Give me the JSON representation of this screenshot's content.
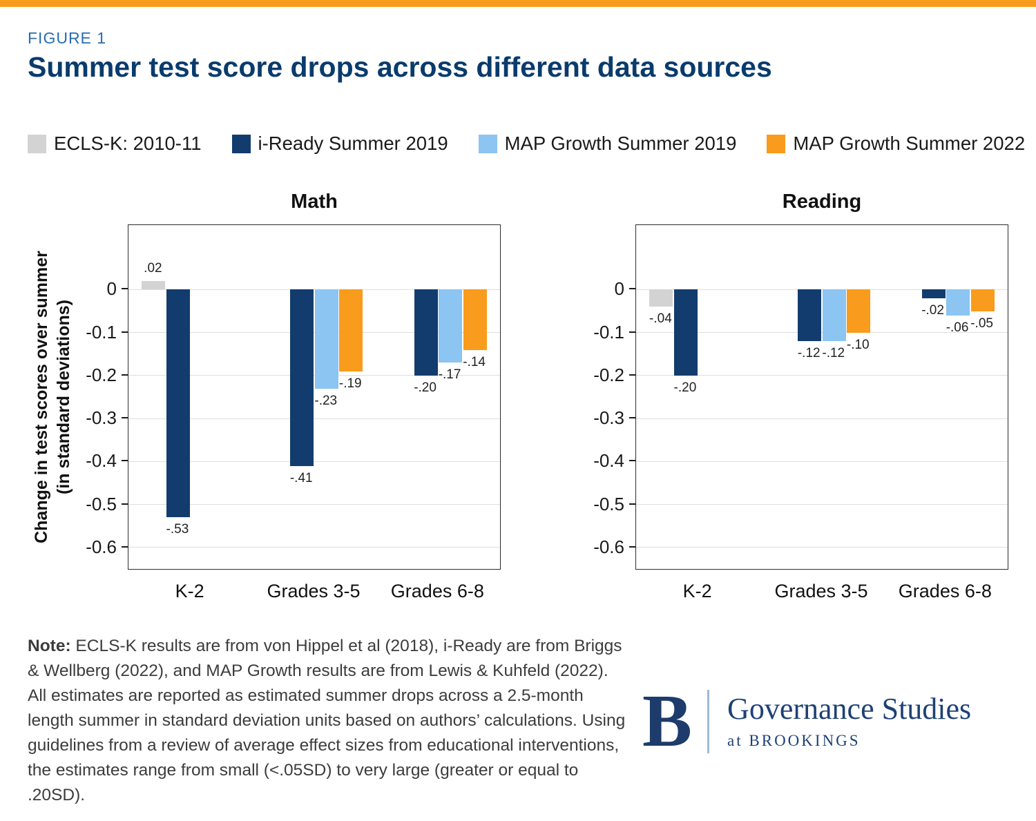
{
  "page": {
    "figure_label": "FIGURE 1",
    "title": "Summer test score drops across different data sources"
  },
  "colors": {
    "accent_bar": "#f99b1c",
    "title_navy": "#093b6d",
    "figure_label_blue": "#2a6db1"
  },
  "legend": [
    {
      "label": "ECLS-K: 2010-11",
      "color": "#d3d3d3"
    },
    {
      "label": "i-Ready Summer 2019",
      "color": "#123c6e"
    },
    {
      "label": "MAP Growth Summer 2019",
      "color": "#8cc4f2"
    },
    {
      "label": "MAP Growth Summer 2022",
      "color": "#f99b1c"
    }
  ],
  "chart_data": [
    {
      "type": "bar",
      "title": "Math",
      "categories": [
        "K-2",
        "Grades 3-5",
        "Grades 6-8"
      ],
      "series": [
        {
          "name": "ECLS-K: 2010-11",
          "color": "#d3d3d3",
          "values": [
            0.02,
            null,
            null
          ],
          "labels": [
            ".02",
            null,
            null
          ]
        },
        {
          "name": "i-Ready Summer 2019",
          "color": "#123c6e",
          "values": [
            -0.53,
            -0.41,
            -0.2
          ],
          "labels": [
            "-.53",
            "-.41",
            "-.20"
          ]
        },
        {
          "name": "MAP Growth Summer 2019",
          "color": "#8cc4f2",
          "values": [
            null,
            -0.23,
            -0.17
          ],
          "labels": [
            null,
            "-.23",
            "-.17"
          ]
        },
        {
          "name": "MAP Growth Summer 2022",
          "color": "#f99b1c",
          "values": [
            null,
            -0.19,
            -0.14
          ],
          "labels": [
            null,
            "-.19",
            "-.14"
          ]
        }
      ],
      "ylabel_line1": "Change in test scores over summer",
      "ylabel_line2": "(in standard deviations)",
      "ylim": [
        -0.65,
        0.15
      ],
      "yticks": [
        {
          "v": 0,
          "label": "0"
        },
        {
          "v": -0.1,
          "label": "-0.1"
        },
        {
          "v": -0.2,
          "label": "-0.2"
        },
        {
          "v": -0.3,
          "label": "-0.3"
        },
        {
          "v": -0.4,
          "label": "-0.4"
        },
        {
          "v": -0.5,
          "label": "-0.5"
        },
        {
          "v": -0.6,
          "label": "-0.6"
        }
      ],
      "grid": true,
      "legend_position": "top"
    },
    {
      "type": "bar",
      "title": "Reading",
      "categories": [
        "K-2",
        "Grades 3-5",
        "Grades 6-8"
      ],
      "series": [
        {
          "name": "ECLS-K: 2010-11",
          "color": "#d3d3d3",
          "values": [
            -0.04,
            null,
            null
          ],
          "labels": [
            "-.04",
            null,
            null
          ]
        },
        {
          "name": "i-Ready Summer 2019",
          "color": "#123c6e",
          "values": [
            -0.2,
            -0.12,
            -0.02
          ],
          "labels": [
            "-.20",
            "-.12",
            "-.02"
          ]
        },
        {
          "name": "MAP Growth Summer 2019",
          "color": "#8cc4f2",
          "values": [
            null,
            -0.12,
            -0.06
          ],
          "labels": [
            null,
            "-.12",
            "-.06"
          ]
        },
        {
          "name": "MAP Growth Summer 2022",
          "color": "#f99b1c",
          "values": [
            null,
            -0.1,
            -0.05
          ],
          "labels": [
            null,
            "-.10",
            "-.05"
          ]
        }
      ],
      "ylim": [
        -0.65,
        0.15
      ],
      "yticks": [
        {
          "v": 0,
          "label": "0"
        },
        {
          "v": -0.1,
          "label": "-0.1"
        },
        {
          "v": -0.2,
          "label": "-0.2"
        },
        {
          "v": -0.3,
          "label": "-0.3"
        },
        {
          "v": -0.4,
          "label": "-0.4"
        },
        {
          "v": -0.5,
          "label": "-0.5"
        },
        {
          "v": -0.6,
          "label": "-0.6"
        }
      ],
      "grid": true,
      "legend_position": "top"
    }
  ],
  "note": {
    "label": "Note:",
    "text": " ECLS-K results are from von Hippel et al (2018), i-Ready are from Briggs & Wellberg (2022), and MAP Growth results are from Lewis & Kuhfeld (2022). All estimates are reported as estimated summer drops across a 2.5-month length summer in standard deviation units based on authors’ calculations. Using guidelines from a review of average effect sizes from educational interventions, the estimates range from small (<.05SD) to very large (greater or equal to .20SD)."
  },
  "logo": {
    "letter": "B",
    "name": "Governance Studies",
    "sub": "at BROOKINGS"
  }
}
